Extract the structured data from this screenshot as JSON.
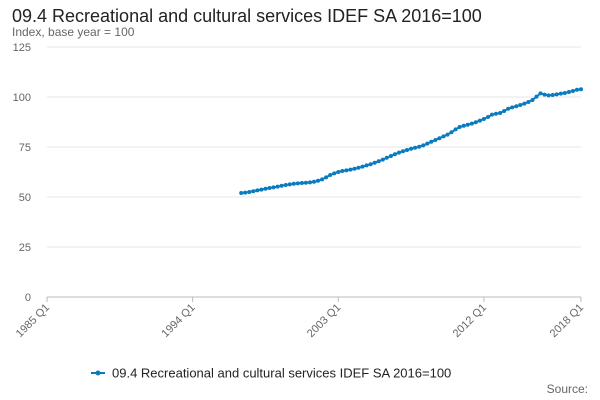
{
  "chart_data": {
    "type": "line",
    "title": "09.4 Recreational and cultural services IDEF SA 2016=100",
    "subtitle": "Index, base year = 100",
    "xlabel": "",
    "ylabel": "",
    "ylim": [
      0,
      125
    ],
    "yticks": [
      0,
      25,
      50,
      75,
      100,
      125
    ],
    "xlim": [
      "1985 Q1",
      "2018 Q1"
    ],
    "xticks": [
      "1985 Q1",
      "1994 Q1",
      "2003 Q1",
      "2012 Q1",
      "2018 Q1"
    ],
    "grid": true,
    "legend_position": "bottom",
    "series": [
      {
        "name": "09.4 Recreational and cultural services IDEF SA 2016=100",
        "color": "#0a7bbf",
        "marker": "circle",
        "x": [
          "1997 Q1",
          "1997 Q2",
          "1997 Q3",
          "1997 Q4",
          "1998 Q1",
          "1998 Q2",
          "1998 Q3",
          "1998 Q4",
          "1999 Q1",
          "1999 Q2",
          "1999 Q3",
          "1999 Q4",
          "2000 Q1",
          "2000 Q2",
          "2000 Q3",
          "2000 Q4",
          "2001 Q1",
          "2001 Q2",
          "2001 Q3",
          "2001 Q4",
          "2002 Q1",
          "2002 Q2",
          "2002 Q3",
          "2002 Q4",
          "2003 Q1",
          "2003 Q2",
          "2003 Q3",
          "2003 Q4",
          "2004 Q1",
          "2004 Q2",
          "2004 Q3",
          "2004 Q4",
          "2005 Q1",
          "2005 Q2",
          "2005 Q3",
          "2005 Q4",
          "2006 Q1",
          "2006 Q2",
          "2006 Q3",
          "2006 Q4",
          "2007 Q1",
          "2007 Q2",
          "2007 Q3",
          "2007 Q4",
          "2008 Q1",
          "2008 Q2",
          "2008 Q3",
          "2008 Q4",
          "2009 Q1",
          "2009 Q2",
          "2009 Q3",
          "2009 Q4",
          "2010 Q1",
          "2010 Q2",
          "2010 Q3",
          "2010 Q4",
          "2011 Q1",
          "2011 Q2",
          "2011 Q3",
          "2011 Q4",
          "2012 Q1",
          "2012 Q2",
          "2012 Q3",
          "2012 Q4",
          "2013 Q1",
          "2013 Q2",
          "2013 Q3",
          "2013 Q4",
          "2014 Q1",
          "2014 Q2",
          "2014 Q3",
          "2014 Q4",
          "2015 Q1",
          "2015 Q2",
          "2015 Q3",
          "2015 Q4",
          "2016 Q1",
          "2016 Q2",
          "2016 Q3",
          "2016 Q4",
          "2017 Q1",
          "2017 Q2",
          "2017 Q3",
          "2017 Q4",
          "2018 Q1"
        ],
        "values": [
          52.0,
          52.2,
          52.5,
          52.9,
          53.3,
          53.7,
          54.1,
          54.5,
          54.8,
          55.2,
          55.6,
          56.0,
          56.3,
          56.6,
          56.8,
          57.0,
          57.1,
          57.3,
          57.6,
          58.1,
          58.8,
          59.8,
          61.0,
          61.8,
          62.5,
          63.0,
          63.3,
          63.7,
          64.1,
          64.6,
          65.2,
          65.8,
          66.4,
          67.1,
          67.9,
          68.7,
          69.6,
          70.5,
          71.4,
          72.2,
          72.9,
          73.5,
          74.1,
          74.6,
          75.1,
          75.8,
          76.7,
          77.6,
          78.5,
          79.4,
          80.3,
          81.2,
          82.4,
          83.8,
          85.0,
          85.6,
          86.1,
          86.7,
          87.4,
          88.2,
          89.0,
          90.0,
          91.2,
          91.6,
          92.0,
          93.0,
          94.1,
          94.8,
          95.4,
          96.0,
          96.7,
          97.5,
          98.5,
          100.2,
          101.8,
          101.2,
          100.8,
          101.0,
          101.3,
          101.7,
          102.0,
          102.5,
          103.0,
          103.6,
          103.9
        ]
      }
    ],
    "source": "Source:"
  }
}
